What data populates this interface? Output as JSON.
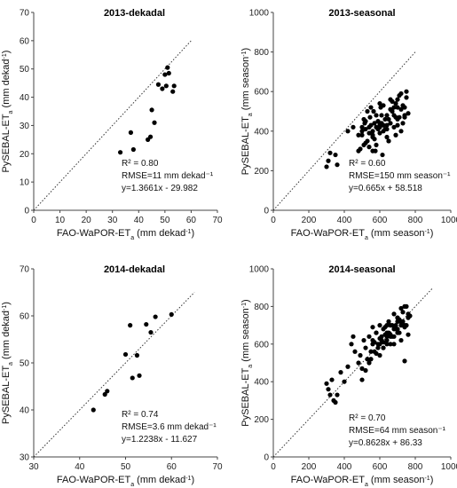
{
  "chart_data": [
    {
      "type": "scatter",
      "title": "2013-dekadal",
      "xlabel": "FAO-WaPOR-ET_a (mm dekad^-1)",
      "ylabel": "PySEBAL-ET_a (mm dekad^-1)",
      "xlim": [
        0,
        70
      ],
      "ylim": [
        0,
        70
      ],
      "xticks": [
        0,
        10,
        20,
        30,
        40,
        50,
        60,
        70
      ],
      "yticks": [
        0,
        10,
        20,
        30,
        40,
        50,
        60,
        70
      ],
      "annotations": [
        "R² = 0.80",
        "RMSE=11 mm dekad⁻¹",
        "y=1.3661x - 29.982"
      ],
      "one_to_one_line": true,
      "x": [
        33,
        37,
        38,
        43.5,
        44.5,
        45,
        46,
        47.5,
        49,
        50,
        50.5,
        51,
        51.5,
        53,
        53.5
      ],
      "y": [
        20.5,
        27.5,
        21.5,
        25.0,
        26.0,
        35.5,
        31.0,
        44.5,
        43.0,
        48.0,
        44.0,
        50.5,
        48.5,
        42.0,
        44.0
      ]
    },
    {
      "type": "scatter",
      "title": "2013-seasonal",
      "xlabel": "FAO-WaPOR-ET_a (mm season^-1)",
      "ylabel": "PySEBAL-ET_a (mm season^-1)",
      "xlim": [
        0,
        1000
      ],
      "ylim": [
        0,
        1000
      ],
      "xticks": [
        0,
        200,
        400,
        600,
        800,
        1000
      ],
      "yticks": [
        0,
        200,
        400,
        600,
        800,
        1000
      ],
      "annotations": [
        "R² = 0.60",
        "RMSE=150 mm season⁻¹",
        "y=0.665x + 58.518"
      ],
      "one_to_one_line": true,
      "x": [
        300,
        310,
        320,
        350,
        360,
        420,
        450,
        480,
        490,
        500,
        510,
        515,
        520,
        530,
        540,
        545,
        550,
        560,
        565,
        570,
        575,
        580,
        590,
        600,
        605,
        610,
        615,
        620,
        630,
        640,
        650,
        660,
        670,
        680,
        690,
        700,
        710,
        720,
        730,
        740,
        750,
        520,
        540,
        560,
        580,
        600,
        620,
        640,
        660,
        680,
        700,
        720,
        740,
        500,
        510,
        530,
        550,
        570,
        590,
        610,
        630,
        650,
        670,
        690,
        710,
        730,
        750,
        520,
        560,
        600,
        640,
        680,
        720,
        760,
        480,
        540,
        580,
        620,
        660,
        700,
        740,
        500,
        560,
        600,
        650,
        700,
        600,
        640,
        690
      ],
      "y": [
        220,
        250,
        290,
        280,
        230,
        400,
        420,
        300,
        310,
        380,
        330,
        440,
        410,
        350,
        320,
        470,
        430,
        400,
        500,
        360,
        300,
        420,
        450,
        390,
        520,
        480,
        280,
        430,
        460,
        410,
        350,
        510,
        550,
        420,
        380,
        560,
        470,
        590,
        440,
        520,
        600,
        450,
        390,
        370,
        330,
        430,
        400,
        370,
        440,
        480,
        430,
        400,
        470,
        420,
        460,
        500,
        520,
        440,
        410,
        440,
        410,
        460,
        500,
        540,
        580,
        530,
        570,
        340,
        300,
        440,
        480,
        520,
        510,
        490,
        380,
        420,
        480,
        530,
        560,
        460,
        480,
        400,
        380,
        420,
        350,
        520,
        540,
        430,
        470
      ]
    },
    {
      "type": "scatter",
      "title": "2014-dekadal",
      "xlabel": "FAO-WaPOR-ET_a (mm dekad^-1)",
      "ylabel": "PySEBAL-ET_a (mm dekad^-1)",
      "xlim": [
        30,
        70
      ],
      "ylim": [
        30,
        70
      ],
      "xticks": [
        30,
        40,
        50,
        60,
        70
      ],
      "yticks": [
        30,
        40,
        50,
        60,
        70
      ],
      "annotations": [
        "R² = 0.74",
        "RMSE=3.6 mm dekad⁻¹",
        "y=1.2238x - 11.627"
      ],
      "one_to_one_line": true,
      "x": [
        43,
        45.5,
        46,
        50,
        51,
        51.5,
        52.5,
        53,
        54.5,
        55.5,
        56.5,
        60
      ],
      "y": [
        40,
        43.3,
        44,
        51.8,
        58.0,
        46.8,
        51.6,
        47.3,
        58.2,
        56.5,
        59.8,
        60.3
      ]
    },
    {
      "type": "scatter",
      "title": "2014-seasonal",
      "xlabel": "FAO-WaPOR-ET_a (mm season^-1)",
      "ylabel": "PySEBAL-ET_a (mm season^-1)",
      "xlim": [
        0,
        1000
      ],
      "ylim": [
        0,
        1000
      ],
      "xticks": [
        0,
        200,
        400,
        600,
        800,
        1000
      ],
      "yticks": [
        0,
        200,
        400,
        600,
        800,
        1000
      ],
      "annotations": [
        "R² = 0.70",
        "RMSE=64 mm season⁻¹",
        "y=0.8628x + 86.33"
      ],
      "one_to_one_line": true,
      "x": [
        300,
        310,
        320,
        330,
        340,
        350,
        360,
        380,
        400,
        420,
        440,
        450,
        460,
        480,
        490,
        500,
        510,
        520,
        530,
        540,
        550,
        560,
        570,
        580,
        590,
        600,
        610,
        620,
        630,
        640,
        650,
        660,
        670,
        680,
        690,
        700,
        710,
        720,
        730,
        740,
        750,
        760,
        770,
        500,
        520,
        540,
        560,
        580,
        600,
        620,
        640,
        660,
        680,
        700,
        720,
        740,
        760,
        550,
        570,
        590,
        610,
        630,
        650,
        670,
        690,
        710,
        730,
        750,
        600,
        620,
        640,
        660,
        680,
        700,
        720,
        740,
        560,
        600,
        640,
        680,
        720,
        760,
        580,
        620,
        660,
        700,
        740,
        640,
        700
      ],
      "y": [
        390,
        360,
        330,
        410,
        300,
        290,
        330,
        450,
        400,
        480,
        600,
        640,
        560,
        500,
        540,
        470,
        620,
        580,
        520,
        640,
        560,
        690,
        610,
        660,
        580,
        700,
        640,
        610,
        690,
        660,
        720,
        650,
        700,
        760,
        680,
        740,
        660,
        790,
        720,
        690,
        800,
        760,
        750,
        410,
        460,
        500,
        600,
        550,
        630,
        580,
        620,
        600,
        640,
        680,
        720,
        700,
        740,
        520,
        560,
        600,
        620,
        650,
        660,
        640,
        700,
        730,
        770,
        700,
        540,
        580,
        600,
        640,
        600,
        660,
        700,
        800,
        620,
        600,
        700,
        680,
        620,
        650,
        660,
        680,
        700,
        740,
        510,
        640,
        720
      ]
    }
  ]
}
